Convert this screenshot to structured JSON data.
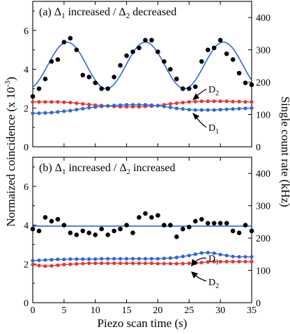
{
  "chart_data": [
    {
      "type": "scatter",
      "panel": "(a)",
      "title_parts": [
        "(a) ",
        "Δ",
        "1",
        " increased / ",
        "Δ",
        "2",
        " decreased"
      ],
      "xlabel": "Piezo scan time (s)",
      "ylabel_left": "Normaized coincidence (x 10",
      "ylabel_left_sup": "-3",
      "ylabel_left_end": ")",
      "ylabel_right": "Single count rate (kHz)",
      "xlim": [
        0,
        35
      ],
      "ylim_left": [
        0,
        7.5
      ],
      "ylim_right": [
        0,
        450
      ],
      "x_ticks": [
        "0",
        "5",
        "10",
        "15",
        "20",
        "25",
        "30",
        "35"
      ],
      "y_ticks_left": [
        "0",
        "2",
        "4",
        "6"
      ],
      "y_ticks_right": [
        "0",
        "100",
        "200",
        "300",
        "400"
      ],
      "coincidence": {
        "color": "#000000",
        "x": [
          0,
          1,
          2,
          3,
          4,
          5,
          6,
          7,
          8,
          9,
          10,
          11,
          12,
          13,
          14,
          15,
          16,
          17,
          18,
          19,
          20,
          21,
          22,
          23,
          24,
          25,
          26,
          27,
          28,
          29,
          30,
          31,
          32,
          33,
          34,
          35
        ],
        "y": [
          2.6,
          3.0,
          3.5,
          4.4,
          4.5,
          5.4,
          5.6,
          5.0,
          3.7,
          3.6,
          3.3,
          3.0,
          3.0,
          3.6,
          4.2,
          4.7,
          4.9,
          5.1,
          5.5,
          5.5,
          4.9,
          4.4,
          4.0,
          3.5,
          3.0,
          3.0,
          3.1,
          4.4,
          5.0,
          5.1,
          5.5,
          4.8,
          4.5,
          3.8,
          3.3,
          3.2
        ],
        "fit": {
          "mean": 4.2,
          "amplitude": 1.2,
          "period": 12.5,
          "peak_x": 5.5
        }
      },
      "series": [
        {
          "name": "D2",
          "color": "#e8352f",
          "x": [
            0,
            1,
            2,
            3,
            4,
            5,
            6,
            7,
            8,
            9,
            10,
            11,
            12,
            13,
            14,
            15,
            16,
            17,
            18,
            19,
            20,
            21,
            22,
            23,
            24,
            25,
            26,
            27,
            28,
            29,
            30,
            31,
            32,
            33,
            34,
            35
          ],
          "y": [
            139,
            139,
            139,
            139,
            139,
            138,
            137,
            135,
            133,
            131,
            129,
            128,
            126,
            125,
            124,
            124,
            124,
            124,
            125,
            126,
            128,
            130,
            133,
            135,
            137,
            139,
            140,
            141,
            141,
            141,
            141,
            141,
            140,
            140,
            139,
            139
          ]
        },
        {
          "name": "D1",
          "color": "#2f66d9",
          "x": [
            0,
            1,
            2,
            3,
            4,
            5,
            6,
            7,
            8,
            9,
            10,
            11,
            12,
            13,
            14,
            15,
            16,
            17,
            18,
            19,
            20,
            21,
            22,
            23,
            24,
            25,
            26,
            27,
            28,
            29,
            30,
            31,
            32,
            33,
            34,
            35
          ],
          "y": [
            104,
            104,
            105,
            106,
            108,
            110,
            112,
            115,
            118,
            121,
            123,
            125,
            127,
            128,
            129,
            130,
            130,
            130,
            130,
            129,
            127,
            125,
            122,
            119,
            117,
            115,
            114,
            114,
            114,
            114,
            115,
            116,
            117,
            118,
            119,
            120
          ]
        }
      ],
      "annotations": [
        {
          "text": "D",
          "sub": "2",
          "series": "D2"
        },
        {
          "text": "D",
          "sub": "1",
          "series": "D1"
        }
      ]
    },
    {
      "type": "scatter",
      "panel": "(b)",
      "title_parts": [
        "(b) ",
        "Δ",
        "1",
        " increased / ",
        "Δ",
        "2",
        " increased"
      ],
      "xlim": [
        0,
        35
      ],
      "ylim_left": [
        0,
        7.5
      ],
      "ylim_right": [
        0,
        450
      ],
      "x_ticks": [
        "0",
        "5",
        "10",
        "15",
        "20",
        "25",
        "30",
        "35"
      ],
      "y_ticks_left": [
        "0",
        "2",
        "4",
        "6"
      ],
      "y_ticks_right": [
        "0",
        "100",
        "200",
        "300",
        "400"
      ],
      "coincidence": {
        "color": "#000000",
        "x": [
          0,
          1,
          2,
          3,
          4,
          5,
          6,
          7,
          8,
          9,
          10,
          11,
          12,
          13,
          14,
          15,
          16,
          17,
          18,
          19,
          20,
          21,
          22,
          23,
          24,
          25,
          26,
          27,
          28,
          29,
          30,
          31,
          32,
          33,
          34,
          35
        ],
        "y": [
          3.8,
          3.7,
          4.4,
          4.2,
          4.3,
          4.0,
          3.6,
          3.5,
          3.7,
          3.6,
          3.5,
          3.8,
          3.5,
          3.7,
          3.8,
          4.0,
          3.6,
          4.4,
          4.6,
          4.4,
          4.5,
          4.0,
          4.0,
          3.4,
          3.8,
          3.9,
          4.2,
          4.3,
          4.1,
          4.1,
          4.1,
          4.1,
          3.7,
          3.6,
          4.0,
          3.7
        ],
        "fit": {
          "mean": 3.95
        }
      },
      "series": [
        {
          "name": "D1",
          "color": "#2f66d9",
          "x": [
            0,
            1,
            2,
            3,
            4,
            5,
            6,
            7,
            8,
            9,
            10,
            11,
            12,
            13,
            14,
            15,
            16,
            17,
            18,
            19,
            20,
            21,
            22,
            23,
            24,
            25,
            26,
            27,
            28,
            29,
            30,
            31,
            32,
            33,
            34,
            35
          ],
          "y": [
            130,
            131,
            132,
            133,
            134,
            134,
            135,
            135,
            135,
            135,
            135,
            136,
            136,
            136,
            136,
            136,
            136,
            136,
            136,
            136,
            136,
            137,
            138,
            140,
            143,
            146,
            150,
            154,
            155,
            153,
            149,
            146,
            143,
            142,
            142,
            142
          ]
        },
        {
          "name": "D2",
          "color": "#e8352f",
          "x": [
            0,
            1,
            2,
            3,
            4,
            5,
            6,
            7,
            8,
            9,
            10,
            11,
            12,
            13,
            14,
            15,
            16,
            17,
            18,
            19,
            20,
            21,
            22,
            23,
            24,
            25,
            26,
            27,
            28,
            29,
            30,
            31,
            32,
            33,
            34,
            35
          ],
          "y": [
            118,
            115,
            113,
            114,
            116,
            118,
            119,
            120,
            121,
            122,
            122,
            122,
            122,
            122,
            122,
            122,
            122,
            122,
            122,
            122,
            121,
            121,
            121,
            121,
            121,
            122,
            122,
            124,
            126,
            127,
            127,
            127,
            127,
            127,
            127,
            127
          ]
        }
      ],
      "annotations": [
        {
          "text": "D",
          "sub": "1",
          "series": "D1"
        },
        {
          "text": "D",
          "sub": "2",
          "series": "D2"
        }
      ]
    }
  ]
}
